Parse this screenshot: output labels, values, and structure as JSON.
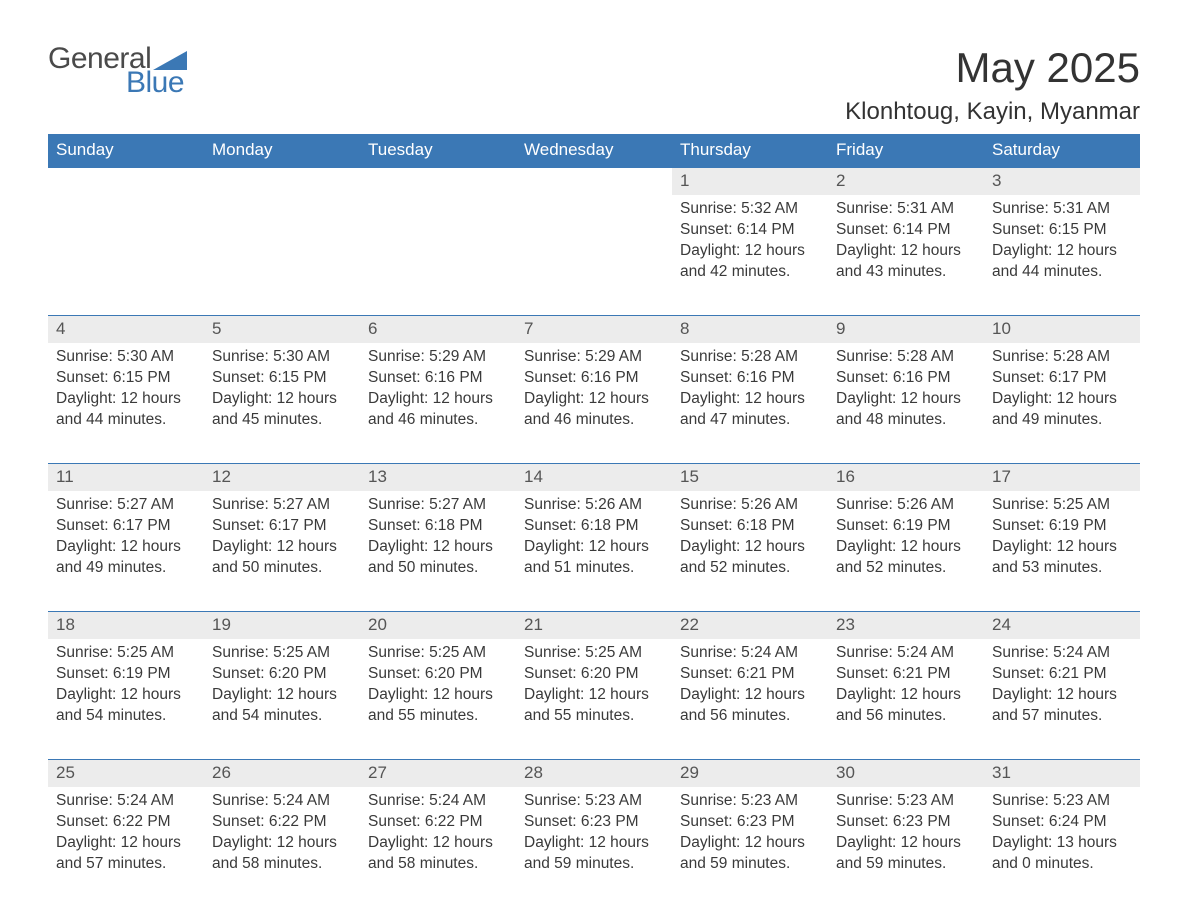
{
  "logo": {
    "word1": "General",
    "word2": "Blue",
    "tri_color": "#3b78b5",
    "text_color": "#4a4a4a"
  },
  "heading": {
    "title": "May 2025",
    "location": "Klonhtoug, Kayin, Myanmar"
  },
  "colors": {
    "header_bg": "#3b78b5",
    "header_text": "#ffffff",
    "daynum_bg": "#ececec",
    "row_border": "#3b78b5",
    "body_text": "#3a3a3a"
  },
  "columns": [
    "Sunday",
    "Monday",
    "Tuesday",
    "Wednesday",
    "Thursday",
    "Friday",
    "Saturday"
  ],
  "weeks": [
    [
      {
        "empty": true
      },
      {
        "empty": true
      },
      {
        "empty": true
      },
      {
        "empty": true
      },
      {
        "n": "1",
        "sunrise": "5:32 AM",
        "sunset": "6:14 PM",
        "daylight": "12 hours and 42 minutes."
      },
      {
        "n": "2",
        "sunrise": "5:31 AM",
        "sunset": "6:14 PM",
        "daylight": "12 hours and 43 minutes."
      },
      {
        "n": "3",
        "sunrise": "5:31 AM",
        "sunset": "6:15 PM",
        "daylight": "12 hours and 44 minutes."
      }
    ],
    [
      {
        "n": "4",
        "sunrise": "5:30 AM",
        "sunset": "6:15 PM",
        "daylight": "12 hours and 44 minutes."
      },
      {
        "n": "5",
        "sunrise": "5:30 AM",
        "sunset": "6:15 PM",
        "daylight": "12 hours and 45 minutes."
      },
      {
        "n": "6",
        "sunrise": "5:29 AM",
        "sunset": "6:16 PM",
        "daylight": "12 hours and 46 minutes."
      },
      {
        "n": "7",
        "sunrise": "5:29 AM",
        "sunset": "6:16 PM",
        "daylight": "12 hours and 46 minutes."
      },
      {
        "n": "8",
        "sunrise": "5:28 AM",
        "sunset": "6:16 PM",
        "daylight": "12 hours and 47 minutes."
      },
      {
        "n": "9",
        "sunrise": "5:28 AM",
        "sunset": "6:16 PM",
        "daylight": "12 hours and 48 minutes."
      },
      {
        "n": "10",
        "sunrise": "5:28 AM",
        "sunset": "6:17 PM",
        "daylight": "12 hours and 49 minutes."
      }
    ],
    [
      {
        "n": "11",
        "sunrise": "5:27 AM",
        "sunset": "6:17 PM",
        "daylight": "12 hours and 49 minutes."
      },
      {
        "n": "12",
        "sunrise": "5:27 AM",
        "sunset": "6:17 PM",
        "daylight": "12 hours and 50 minutes."
      },
      {
        "n": "13",
        "sunrise": "5:27 AM",
        "sunset": "6:18 PM",
        "daylight": "12 hours and 50 minutes."
      },
      {
        "n": "14",
        "sunrise": "5:26 AM",
        "sunset": "6:18 PM",
        "daylight": "12 hours and 51 minutes."
      },
      {
        "n": "15",
        "sunrise": "5:26 AM",
        "sunset": "6:18 PM",
        "daylight": "12 hours and 52 minutes."
      },
      {
        "n": "16",
        "sunrise": "5:26 AM",
        "sunset": "6:19 PM",
        "daylight": "12 hours and 52 minutes."
      },
      {
        "n": "17",
        "sunrise": "5:25 AM",
        "sunset": "6:19 PM",
        "daylight": "12 hours and 53 minutes."
      }
    ],
    [
      {
        "n": "18",
        "sunrise": "5:25 AM",
        "sunset": "6:19 PM",
        "daylight": "12 hours and 54 minutes."
      },
      {
        "n": "19",
        "sunrise": "5:25 AM",
        "sunset": "6:20 PM",
        "daylight": "12 hours and 54 minutes."
      },
      {
        "n": "20",
        "sunrise": "5:25 AM",
        "sunset": "6:20 PM",
        "daylight": "12 hours and 55 minutes."
      },
      {
        "n": "21",
        "sunrise": "5:25 AM",
        "sunset": "6:20 PM",
        "daylight": "12 hours and 55 minutes."
      },
      {
        "n": "22",
        "sunrise": "5:24 AM",
        "sunset": "6:21 PM",
        "daylight": "12 hours and 56 minutes."
      },
      {
        "n": "23",
        "sunrise": "5:24 AM",
        "sunset": "6:21 PM",
        "daylight": "12 hours and 56 minutes."
      },
      {
        "n": "24",
        "sunrise": "5:24 AM",
        "sunset": "6:21 PM",
        "daylight": "12 hours and 57 minutes."
      }
    ],
    [
      {
        "n": "25",
        "sunrise": "5:24 AM",
        "sunset": "6:22 PM",
        "daylight": "12 hours and 57 minutes."
      },
      {
        "n": "26",
        "sunrise": "5:24 AM",
        "sunset": "6:22 PM",
        "daylight": "12 hours and 58 minutes."
      },
      {
        "n": "27",
        "sunrise": "5:24 AM",
        "sunset": "6:22 PM",
        "daylight": "12 hours and 58 minutes."
      },
      {
        "n": "28",
        "sunrise": "5:23 AM",
        "sunset": "6:23 PM",
        "daylight": "12 hours and 59 minutes."
      },
      {
        "n": "29",
        "sunrise": "5:23 AM",
        "sunset": "6:23 PM",
        "daylight": "12 hours and 59 minutes."
      },
      {
        "n": "30",
        "sunrise": "5:23 AM",
        "sunset": "6:23 PM",
        "daylight": "12 hours and 59 minutes."
      },
      {
        "n": "31",
        "sunrise": "5:23 AM",
        "sunset": "6:24 PM",
        "daylight": "13 hours and 0 minutes."
      }
    ]
  ],
  "labels": {
    "sunrise": "Sunrise:",
    "sunset": "Sunset:",
    "daylight": "Daylight:"
  }
}
